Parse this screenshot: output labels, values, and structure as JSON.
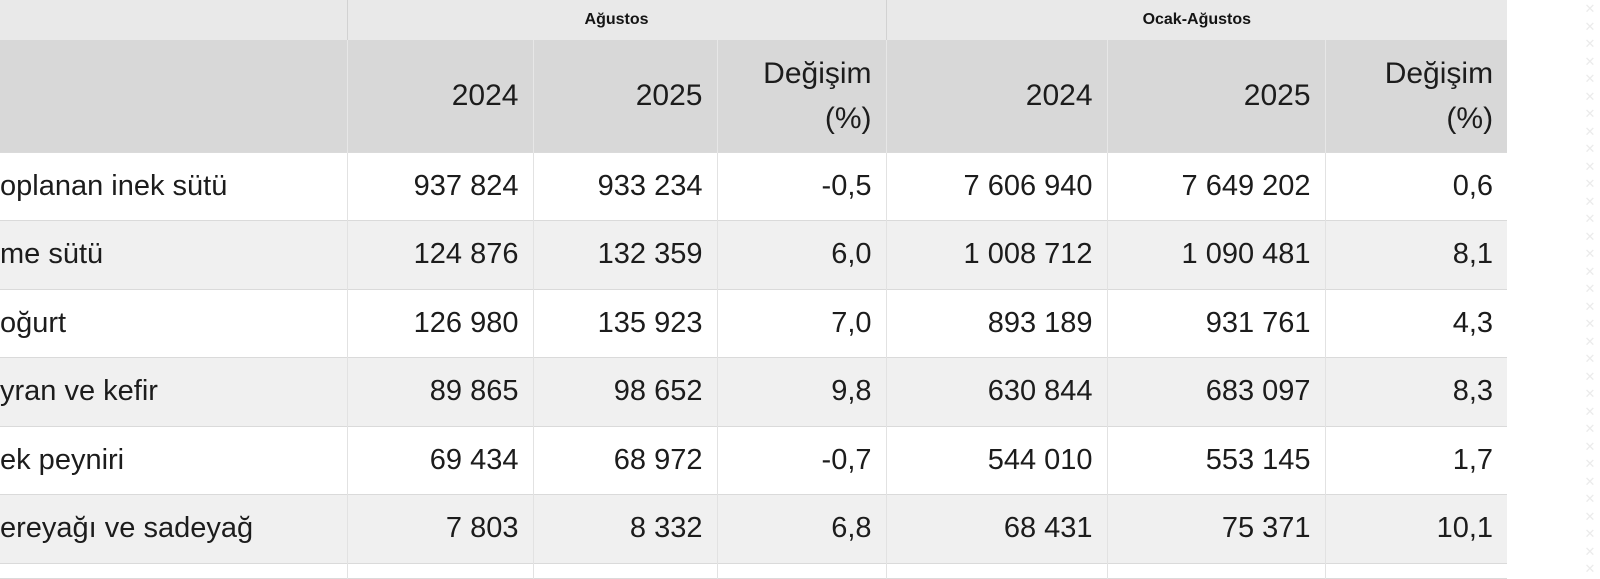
{
  "table": {
    "group_headers": [
      {
        "key": "agustos",
        "label": "Ağustos"
      },
      {
        "key": "ocak-agustos",
        "label": "Ocak-Ağustos"
      }
    ],
    "column_headers": [
      {
        "key": "agustos-2024",
        "line1": "2024",
        "line2": ""
      },
      {
        "key": "agustos-2025",
        "line1": "2025",
        "line2": ""
      },
      {
        "key": "agustos-degisim",
        "line1": "Değişim",
        "line2": "(%)"
      },
      {
        "key": "ocak-agustos-2024",
        "line1": "2024",
        "line2": ""
      },
      {
        "key": "ocak-agustos-2025",
        "line1": "2025",
        "line2": ""
      },
      {
        "key": "ocak-agustos-degisim",
        "line1": "Değişim",
        "line2": "(%)"
      }
    ],
    "rows": [
      {
        "label": "oplanan inek sütü",
        "values": [
          "937 824",
          "933 234",
          "-0,5",
          "7 606 940",
          "7 649 202",
          "0,6"
        ]
      },
      {
        "label": "me sütü",
        "values": [
          "124 876",
          "132 359",
          "6,0",
          "1 008 712",
          "1 090 481",
          "8,1"
        ]
      },
      {
        "label": "oğurt",
        "values": [
          "126 980",
          "135 923",
          "7,0",
          "893 189",
          "931 761",
          "4,3"
        ]
      },
      {
        "label": "yran ve kefir",
        "values": [
          "89 865",
          "98 652",
          "9,8",
          "630 844",
          "683 097",
          "8,3"
        ]
      },
      {
        "label": "ek peyniri",
        "values": [
          "69 434",
          "68 972",
          "-0,7",
          "544 010",
          "553 145",
          "1,7"
        ]
      },
      {
        "label": "ereyağı ve sadeyağ",
        "values": [
          "7 803",
          "8 332",
          "6,8",
          "68 431",
          "75 371",
          "10,1"
        ]
      }
    ]
  },
  "chart_data": {
    "type": "table",
    "title": "",
    "column_groups": [
      "Ağustos",
      "Ocak-Ağustos"
    ],
    "columns": [
      "Ağustos 2024",
      "Ağustos 2025",
      "Ağustos Değişim (%)",
      "Ocak-Ağustos 2024",
      "Ocak-Ağustos 2025",
      "Ocak-Ağustos Değişim (%)"
    ],
    "rows": [
      {
        "label": "oplanan inek sütü",
        "values": [
          937824,
          933234,
          -0.5,
          7606940,
          7649202,
          0.6
        ]
      },
      {
        "label": "me sütü",
        "values": [
          124876,
          132359,
          6.0,
          1008712,
          1090481,
          8.1
        ]
      },
      {
        "label": "oğurt",
        "values": [
          126980,
          135923,
          7.0,
          893189,
          931761,
          4.3
        ]
      },
      {
        "label": "yran ve kefir",
        "values": [
          89865,
          98652,
          9.8,
          630844,
          683097,
          8.3
        ]
      },
      {
        "label": "ek peyniri",
        "values": [
          69434,
          68972,
          -0.7,
          544010,
          553145,
          1.7
        ]
      },
      {
        "label": "ereyağı ve sadeyağ",
        "values": [
          7803,
          8332,
          6.8,
          68431,
          75371,
          10.1
        ]
      }
    ],
    "decimal_separator": ",",
    "thousands_separator": " "
  },
  "colors": {
    "group_header_bg": "#e9e9e9",
    "column_header_bg": "#d8d8d8",
    "row_alt_bg": "#f0f0f0",
    "row_bg": "#ffffff",
    "border": "#dadada",
    "text": "#1c1c1c"
  },
  "right_edge_pattern": {
    "char": "✕",
    "count": 33
  }
}
